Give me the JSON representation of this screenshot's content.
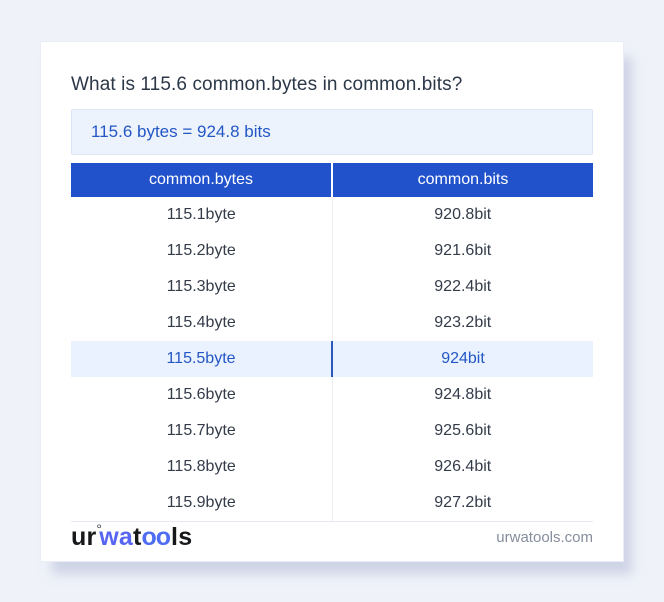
{
  "page": {
    "title": "What is 115.6 common.bytes in common.bits?",
    "result": "115.6 bytes = 924.8 bits"
  },
  "table": {
    "headers": [
      "common.bytes",
      "common.bits"
    ],
    "rows": [
      {
        "bytes": "115.1byte",
        "bits": "920.8bit",
        "highlight": false
      },
      {
        "bytes": "115.2byte",
        "bits": "921.6bit",
        "highlight": false
      },
      {
        "bytes": "115.3byte",
        "bits": "922.4bit",
        "highlight": false
      },
      {
        "bytes": "115.4byte",
        "bits": "923.2bit",
        "highlight": false
      },
      {
        "bytes": "115.5byte",
        "bits": "924bit",
        "highlight": true
      },
      {
        "bytes": "115.6byte",
        "bits": "924.8bit",
        "highlight": false
      },
      {
        "bytes": "115.7byte",
        "bits": "925.6bit",
        "highlight": false
      },
      {
        "bytes": "115.8byte",
        "bits": "926.4bit",
        "highlight": false
      },
      {
        "bytes": "115.9byte",
        "bits": "927.2bit",
        "highlight": false
      }
    ]
  },
  "footer": {
    "logo": {
      "part1": "ur",
      "ring": "°",
      "part2": "wa",
      "part3": "t",
      "part4": "oo",
      "part5": "ls"
    },
    "site": "urwatools.com"
  },
  "colors": {
    "page_background": "#eff2f9",
    "card_background": "#ffffff",
    "table_header_blue": "#2152cb",
    "highlight_row_bg": "#e9f2fe",
    "link_blue": "#2456c5",
    "result_box_bg": "#ecf3fc",
    "logo_blue_wa": "#5865f2",
    "logo_blue_oo": "#4f6df2",
    "muted_text": "#868e9c",
    "title_text": "#2c3848",
    "row_text": "#343b49"
  }
}
